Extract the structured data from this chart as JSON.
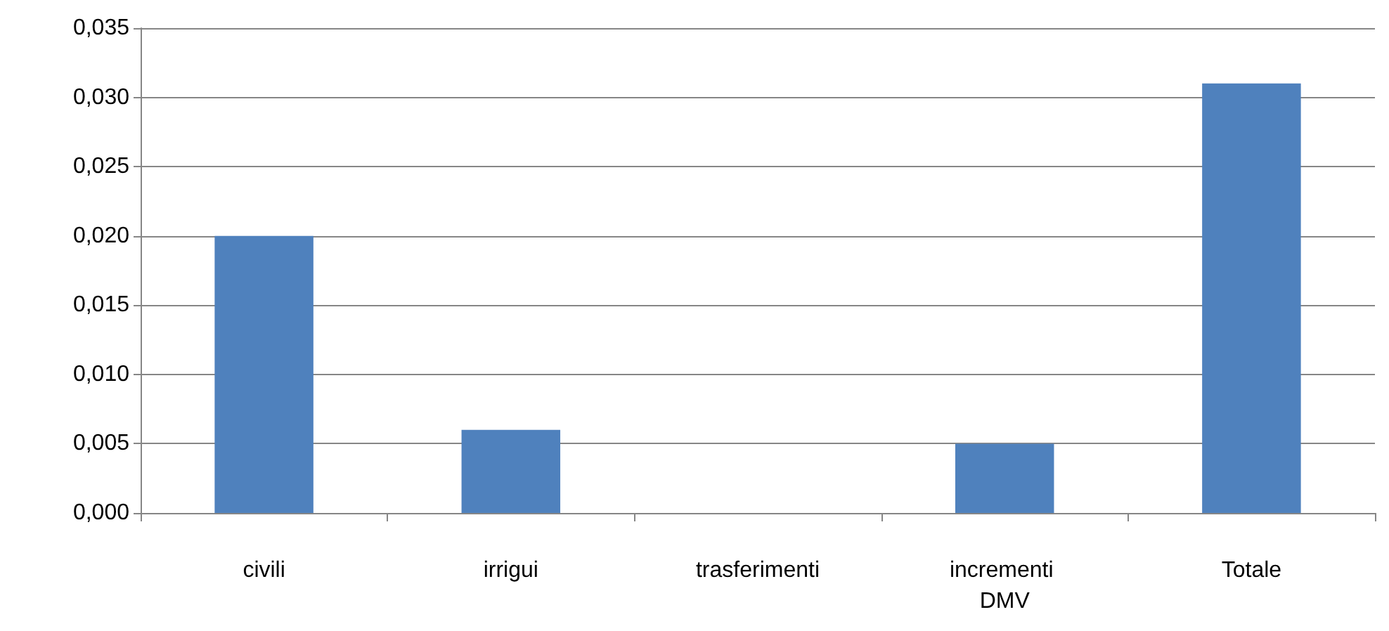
{
  "chart_data": {
    "type": "bar",
    "categories": [
      "civili",
      "irrigui",
      "trasferimenti",
      "incrementi DMV",
      "Totale"
    ],
    "values": [
      0.02,
      0.006,
      0,
      0.005,
      0.031
    ],
    "color": "#4f81bd",
    "ylim": [
      0,
      0.035
    ],
    "yticks": [
      {
        "value": 0,
        "label": "0,000"
      },
      {
        "value": 0.005,
        "label": "0,005"
      },
      {
        "value": 0.01,
        "label": "0,010"
      },
      {
        "value": 0.015,
        "label": "0,015"
      },
      {
        "value": 0.02,
        "label": "0,020"
      },
      {
        "value": 0.025,
        "label": "0,025"
      },
      {
        "value": 0.03,
        "label": "0,030"
      },
      {
        "value": 0.035,
        "label": "0,035"
      }
    ],
    "grid": "y"
  }
}
